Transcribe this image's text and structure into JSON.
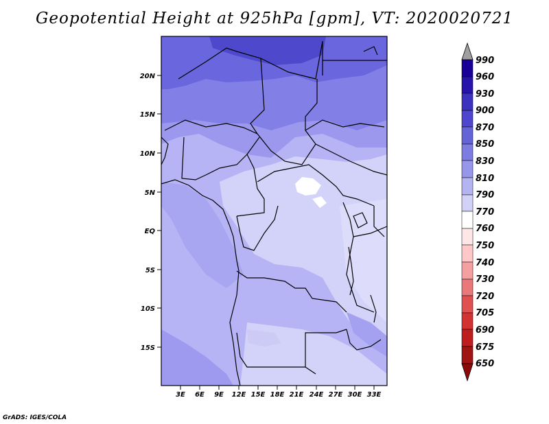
{
  "title": "Geopotential Height at 925hPa [gpm], VT: 2020020721",
  "footer": "GrADS: IGES/COLA",
  "map": {
    "projection": "latlon",
    "lon_range_deg": [
      0,
      35
    ],
    "lat_range_deg": [
      -20,
      25
    ],
    "lon_tick_labels": [
      "3E",
      "6E",
      "9E",
      "12E",
      "15E",
      "18E",
      "21E",
      "24E",
      "27E",
      "30E",
      "33E"
    ],
    "lat_tick_labels": [
      "20N",
      "15N",
      "10N",
      "5N",
      "EQ",
      "5S",
      "10S",
      "15S"
    ],
    "boundaries": "country borders and coastlines (black)"
  },
  "colorbar": {
    "levels": [
      "990",
      "960",
      "930",
      "900",
      "870",
      "850",
      "830",
      "810",
      "790",
      "770",
      "760",
      "750",
      "740",
      "730",
      "720",
      "705",
      "690",
      "675",
      "650"
    ],
    "colors": [
      "#a0a0a0",
      "#1a0096",
      "#2814aa",
      "#3c32be",
      "#5046cd",
      "#6464d7",
      "#7d7de1",
      "#9696eb",
      "#b4b4f0",
      "#d2d2f8",
      "#ffffff",
      "#ffe6e6",
      "#ffc8c8",
      "#f5a0a0",
      "#eb7878",
      "#e15050",
      "#d23232",
      "#be1e1e",
      "#a01414",
      "#8c0a0a"
    ],
    "extend": "both"
  }
}
